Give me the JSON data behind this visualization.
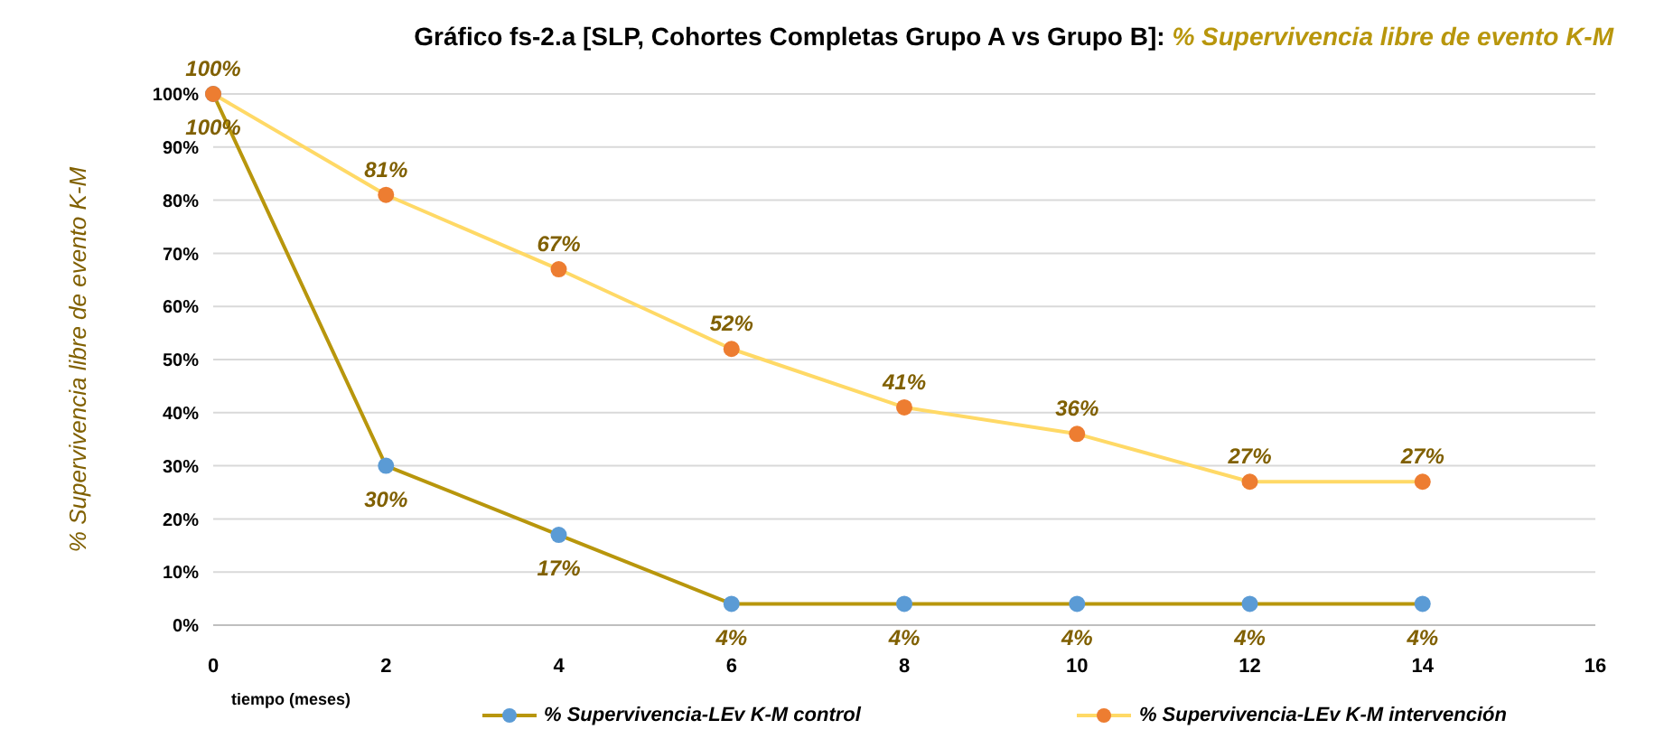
{
  "chart_data": {
    "type": "line",
    "title": "Gráfico fs-2.a [SLP, Cohortes Completas Grupo A vs Grupo B]:",
    "subtitle": "% Supervivencia libre de evento K-M",
    "xlabel": "tiempo (meses)",
    "ylabel": "% Supervivencia libre de evento K-M",
    "x": [
      0,
      2,
      4,
      6,
      8,
      10,
      12,
      14
    ],
    "series": [
      {
        "name": "% Supervivencia-LEv K-M control",
        "color": "#b8960c",
        "colors": [
          "#5b9bd5",
          "#5b9bd5",
          "#5b9bd5",
          "#5b9bd5",
          "#5b9bd5",
          "#5b9bd5",
          "#5b9bd5",
          "#5b9bd5"
        ],
        "values": [
          100,
          30,
          17,
          4,
          4,
          4,
          4,
          4
        ],
        "value_labels": [
          "100%",
          "30%",
          "17%",
          "4%",
          "4%",
          "4%",
          "4%",
          "4%"
        ]
      },
      {
        "name": "% Supervivencia-LEv K-M intervención",
        "color": "#ffd966",
        "colors": [
          "#ed7d31",
          "#ed7d31",
          "#ed7d31",
          "#ed7d31",
          "#ed7d31",
          "#ed7d31",
          "#ed7d31",
          "#ed7d31"
        ],
        "values": [
          100,
          81,
          67,
          52,
          41,
          36,
          27,
          27
        ],
        "value_labels": [
          "100%",
          "81%",
          "67%",
          "52%",
          "41%",
          "36%",
          "27%",
          "27%"
        ]
      }
    ],
    "xlim": [
      0,
      16
    ],
    "xticks": [
      0,
      2,
      4,
      6,
      8,
      10,
      12,
      14,
      16
    ],
    "ylim": [
      0,
      100
    ],
    "yticks": [
      {
        "value": 0,
        "label": "0%"
      },
      {
        "value": 10,
        "label": "10%"
      },
      {
        "value": 20,
        "label": "20%"
      },
      {
        "value": 30,
        "label": "30%"
      },
      {
        "value": 40,
        "label": "40%"
      },
      {
        "value": 50,
        "label": "50%"
      },
      {
        "value": 60,
        "label": "60%"
      },
      {
        "value": 70,
        "label": "70%"
      },
      {
        "value": 80,
        "label": "80%"
      },
      {
        "value": 90,
        "label": "90%"
      },
      {
        "value": 100,
        "label": "100%"
      }
    ],
    "grid": "y",
    "legend": "bottom",
    "marker": "circle",
    "line_style": "solid"
  }
}
